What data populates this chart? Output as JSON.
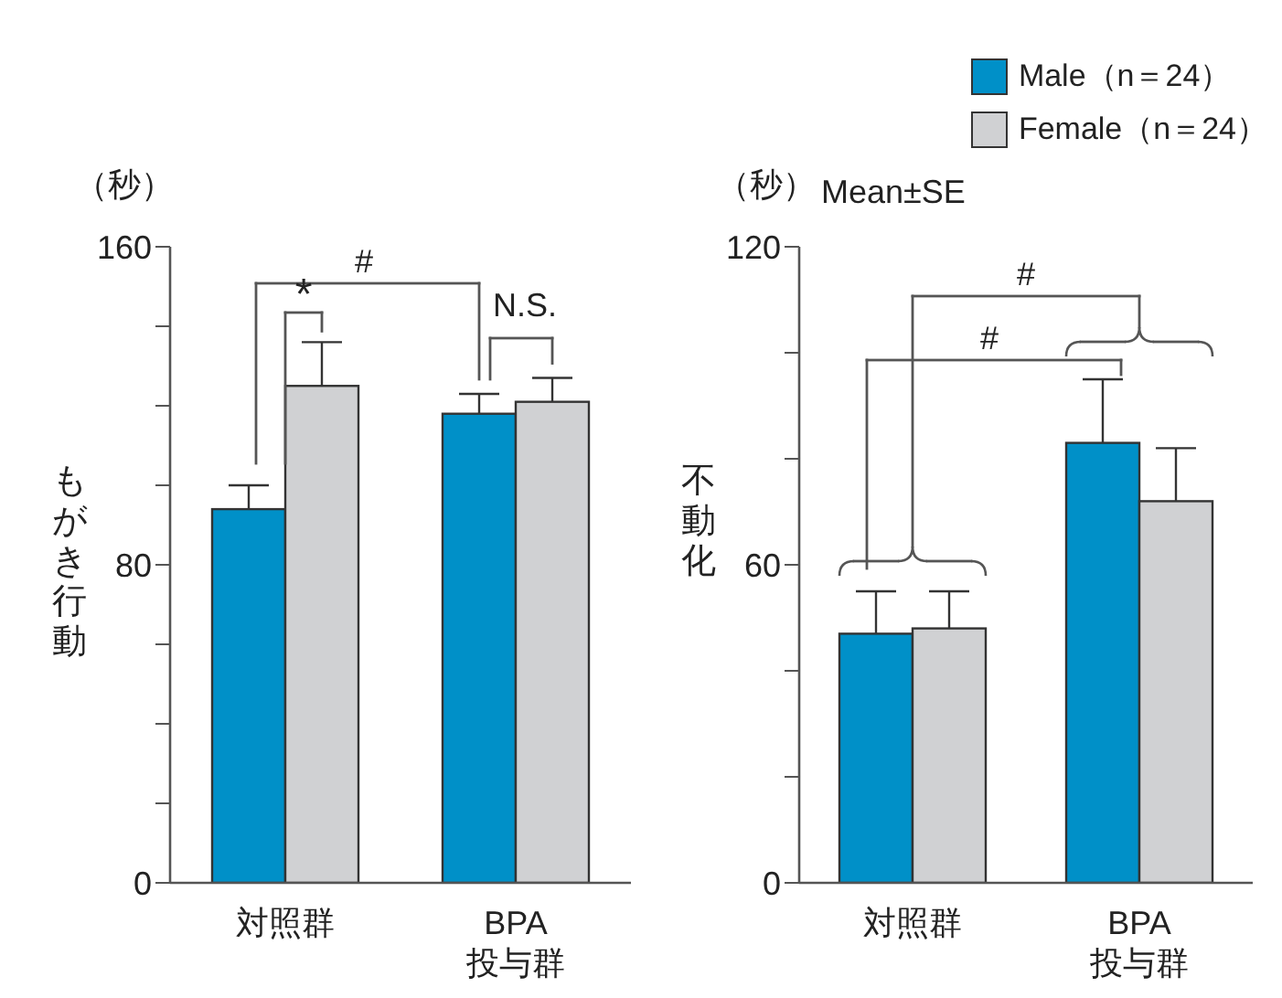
{
  "chart_data": [
    {
      "type": "bar",
      "categories": [
        "対照群",
        "BPA\n投与群"
      ],
      "ylabel": "もがき行動",
      "ylim": [
        0,
        160
      ],
      "yticks": [
        0,
        {
          "value": 20,
          "label": null
        },
        {
          "value": 40,
          "label": null
        },
        {
          "value": 60,
          "label": null
        },
        80,
        {
          "value": 100,
          "label": null
        },
        {
          "value": 120,
          "label": null
        },
        {
          "value": 140,
          "label": null
        },
        160
      ],
      "legend": false,
      "series": [
        {
          "color": "#0090c8",
          "values": [
            94,
            118
          ],
          "errors": [
            6,
            5
          ]
        },
        {
          "color": "#d0d1d3",
          "values": [
            125,
            121
          ],
          "errors": [
            11,
            6
          ]
        }
      ],
      "annotations": [
        "（秒）",
        "#",
        "*",
        "N.S."
      ]
    },
    {
      "type": "bar",
      "categories": [
        "対照群",
        "BPA\n投与群"
      ],
      "ylabel": "不動化",
      "ylim": [
        0,
        120
      ],
      "yticks": [
        0,
        {
          "value": 20,
          "label": null
        },
        {
          "value": 40,
          "label": null
        },
        60,
        {
          "value": 80,
          "label": null
        },
        {
          "value": 100,
          "label": null
        },
        120
      ],
      "legend": "top right",
      "series": [
        {
          "name": "Male（n＝24）",
          "color": "#0090c8",
          "values": [
            47,
            83
          ],
          "errors": [
            8,
            12
          ]
        },
        {
          "name": "Female（n＝24）",
          "color": "#d0d1d3",
          "values": [
            48,
            72
          ],
          "errors": [
            7,
            10
          ]
        }
      ],
      "annotations": [
        "（秒）",
        "#",
        "#",
        "Mean±SE"
      ]
    }
  ]
}
